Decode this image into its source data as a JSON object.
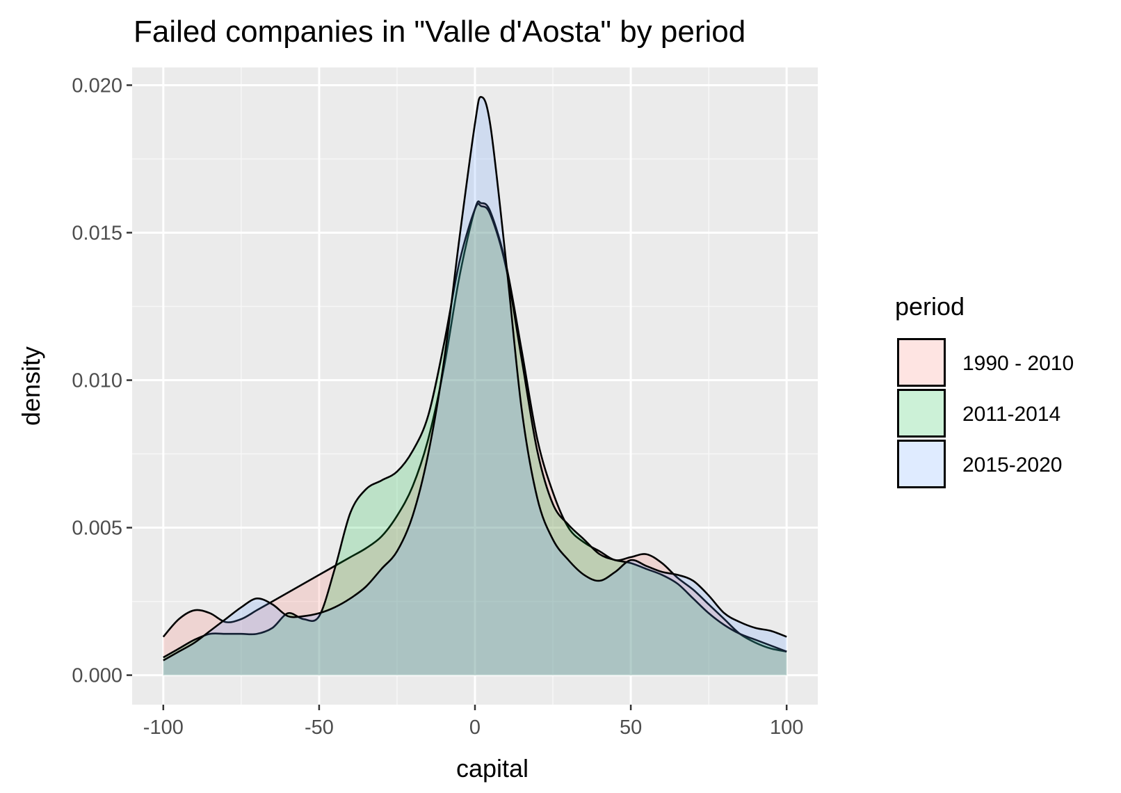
{
  "chart_data": {
    "type": "area",
    "title": "Failed companies in \"Valle d'Aosta\" by period",
    "xlabel": "capital",
    "ylabel": "density",
    "xlim": [
      -110,
      110
    ],
    "ylim": [
      -0.001,
      0.0206
    ],
    "x_ticks": [
      -100,
      -50,
      0,
      50,
      100
    ],
    "x_tick_labels": [
      "-100",
      "-50",
      "0",
      "50",
      "100"
    ],
    "y_ticks": [
      0,
      0.005,
      0.01,
      0.015,
      0.02
    ],
    "y_tick_labels": [
      "0.000",
      "0.005",
      "0.010",
      "0.015",
      "0.020"
    ],
    "grid": true,
    "legend": {
      "title": "period",
      "placement": "right"
    },
    "x": [
      -100,
      -95,
      -90,
      -85,
      -80,
      -75,
      -70,
      -65,
      -60,
      -55,
      -50,
      -45,
      -40,
      -35,
      -30,
      -25,
      -20,
      -15,
      -10,
      -5,
      0,
      2,
      5,
      10,
      15,
      20,
      25,
      30,
      35,
      40,
      45,
      50,
      55,
      60,
      65,
      70,
      75,
      80,
      85,
      90,
      95,
      100
    ],
    "series": [
      {
        "name": "1990 - 2010",
        "color": "#F8766D",
        "values": [
          0.0013,
          0.0019,
          0.0022,
          0.0021,
          0.0018,
          0.0019,
          0.0022,
          0.0025,
          0.0028,
          0.0031,
          0.0034,
          0.0037,
          0.004,
          0.0043,
          0.0047,
          0.0054,
          0.0064,
          0.008,
          0.0104,
          0.0135,
          0.0158,
          0.016,
          0.0157,
          0.0139,
          0.011,
          0.008,
          0.0062,
          0.005,
          0.0045,
          0.0042,
          0.0039,
          0.004,
          0.0041,
          0.0038,
          0.0033,
          0.0029,
          0.0024,
          0.0019,
          0.0014,
          0.0011,
          0.0009,
          0.0008
        ]
      },
      {
        "name": "2011-2014",
        "color": "#00BA38",
        "values": [
          0.0006,
          0.0009,
          0.0012,
          0.0014,
          0.0014,
          0.0014,
          0.0014,
          0.0016,
          0.0021,
          0.0019,
          0.002,
          0.0036,
          0.0055,
          0.0063,
          0.0066,
          0.0069,
          0.0076,
          0.0088,
          0.0112,
          0.014,
          0.0158,
          0.0159,
          0.0156,
          0.0138,
          0.0107,
          0.0076,
          0.0058,
          0.0051,
          0.0046,
          0.0041,
          0.0039,
          0.0038,
          0.0036,
          0.0034,
          0.0031,
          0.0026,
          0.0021,
          0.0017,
          0.0014,
          0.0012,
          0.001,
          0.0008
        ]
      },
      {
        "name": "2015-2020",
        "color": "#619CFF",
        "values": [
          0.0005,
          0.0008,
          0.0011,
          0.0015,
          0.0019,
          0.0023,
          0.0026,
          0.0024,
          0.002,
          0.002,
          0.0021,
          0.0023,
          0.0026,
          0.003,
          0.0036,
          0.0042,
          0.0054,
          0.0075,
          0.0106,
          0.0148,
          0.0187,
          0.0196,
          0.0186,
          0.014,
          0.009,
          0.006,
          0.0046,
          0.0039,
          0.0034,
          0.0032,
          0.0035,
          0.0039,
          0.0037,
          0.0035,
          0.0034,
          0.0032,
          0.0027,
          0.0021,
          0.0018,
          0.0016,
          0.0015,
          0.0013
        ]
      }
    ]
  }
}
